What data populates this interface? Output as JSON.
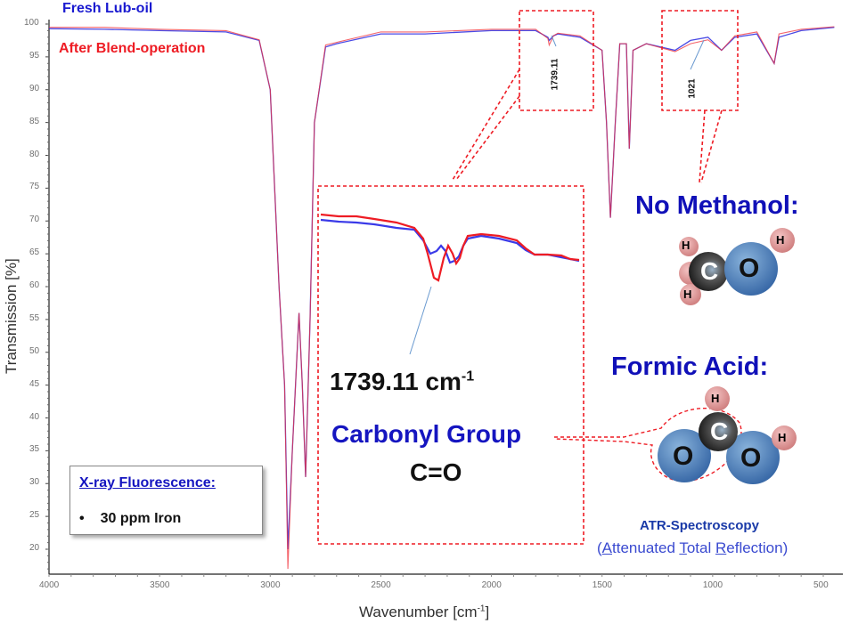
{
  "legend": {
    "series1": "Fresh Lub-oil",
    "series2": "After Blend-operation"
  },
  "axes": {
    "ylabel": "Transmission [%]",
    "xlabel_main": "Wavenumber [cm",
    "xlabel_sup": "-1",
    "xlabel_end": "]",
    "yticks": [
      "100",
      "95",
      "90",
      "85",
      "80",
      "75",
      "70",
      "65",
      "60",
      "55",
      "50",
      "45",
      "40",
      "35",
      "30",
      "25",
      "20"
    ],
    "xticks": [
      "4000",
      "3500",
      "3000",
      "2500",
      "2000",
      "1500",
      "1000",
      "500"
    ]
  },
  "annotations": {
    "peak1_label": "1739.11",
    "peak2_label": "1021",
    "inset_wavenumber": "1739.11 cm",
    "inset_wavenumber_sup": "-1",
    "inset_group": "Carbonyl Group",
    "inset_formula": "C=O",
    "methanol_title": "No Methanol:",
    "formic_title": "Formic Acid:",
    "atr_title": "ATR-Spectroscopy",
    "atr_sub_open": "(",
    "atr_sub_A": "A",
    "atr_sub_ttenuated": "ttenuated ",
    "atr_sub_T": "T",
    "atr_sub_otal": "otal ",
    "atr_sub_R": "R",
    "atr_sub_eflection": "eflection)"
  },
  "xrf_box": {
    "title": "X-ray Fluorescence:",
    "item": "30 ppm Iron"
  },
  "molecules": {
    "methanol": {
      "atoms": [
        "H",
        "H",
        "H",
        "C",
        "O",
        "H"
      ]
    },
    "formic_acid": {
      "atoms": [
        "H",
        "C",
        "O",
        "O",
        "H"
      ]
    }
  },
  "colors": {
    "fresh": "#2a2ae0",
    "after": "#f0303a",
    "annotation_box": "#ee1c24",
    "title_blue": "#1010b8"
  },
  "chart_data": {
    "type": "line",
    "title": "",
    "xlabel": "Wavenumber [cm-1]",
    "ylabel": "Transmission [%]",
    "xlim": [
      4000,
      450
    ],
    "ylim": [
      16,
      100
    ],
    "x_reversed": true,
    "grid": false,
    "legend_position": "top-left",
    "series": [
      {
        "name": "Fresh Lub-oil",
        "color": "#2a2ae0",
        "points": [
          [
            4000,
            99.3
          ],
          [
            3750,
            99.2
          ],
          [
            3500,
            99.0
          ],
          [
            3200,
            98.8
          ],
          [
            3050,
            97.5
          ],
          [
            3000,
            90
          ],
          [
            2960,
            60
          ],
          [
            2935,
            45
          ],
          [
            2920,
            20
          ],
          [
            2900,
            35
          ],
          [
            2870,
            56
          ],
          [
            2855,
            45
          ],
          [
            2840,
            31
          ],
          [
            2820,
            55
          ],
          [
            2800,
            85
          ],
          [
            2750,
            96.5
          ],
          [
            2700,
            97
          ],
          [
            2500,
            98.5
          ],
          [
            2300,
            98.5
          ],
          [
            2000,
            99
          ],
          [
            1800,
            99
          ],
          [
            1745,
            98
          ],
          [
            1739,
            97.5
          ],
          [
            1720,
            98.2
          ],
          [
            1700,
            98.5
          ],
          [
            1600,
            98
          ],
          [
            1500,
            96
          ],
          [
            1480,
            85
          ],
          [
            1462,
            70.5
          ],
          [
            1440,
            85
          ],
          [
            1420,
            97
          ],
          [
            1390,
            97
          ],
          [
            1377,
            81
          ],
          [
            1360,
            96
          ],
          [
            1300,
            97
          ],
          [
            1170,
            96
          ],
          [
            1100,
            97.5
          ],
          [
            1021,
            98
          ],
          [
            960,
            96
          ],
          [
            900,
            98
          ],
          [
            800,
            98.5
          ],
          [
            722,
            94
          ],
          [
            700,
            98
          ],
          [
            600,
            99
          ],
          [
            450,
            99.5
          ]
        ]
      },
      {
        "name": "After Blend-operation",
        "color": "#f0303a",
        "points": [
          [
            4000,
            99.5
          ],
          [
            3750,
            99.5
          ],
          [
            3500,
            99.2
          ],
          [
            3200,
            99.0
          ],
          [
            3050,
            97.6
          ],
          [
            3000,
            90
          ],
          [
            2960,
            60
          ],
          [
            2935,
            45
          ],
          [
            2920,
            17
          ],
          [
            2900,
            35
          ],
          [
            2870,
            56
          ],
          [
            2855,
            45
          ],
          [
            2840,
            31
          ],
          [
            2820,
            55
          ],
          [
            2800,
            85
          ],
          [
            2750,
            96.8
          ],
          [
            2700,
            97.2
          ],
          [
            2500,
            98.8
          ],
          [
            2300,
            98.8
          ],
          [
            2000,
            99.2
          ],
          [
            1800,
            99.2
          ],
          [
            1745,
            97.8
          ],
          [
            1739,
            96.8
          ],
          [
            1720,
            98.2
          ],
          [
            1700,
            98.6
          ],
          [
            1600,
            98.2
          ],
          [
            1500,
            96
          ],
          [
            1480,
            85
          ],
          [
            1462,
            70.5
          ],
          [
            1440,
            85
          ],
          [
            1420,
            97
          ],
          [
            1390,
            97
          ],
          [
            1377,
            81
          ],
          [
            1360,
            96
          ],
          [
            1300,
            97
          ],
          [
            1170,
            95.8
          ],
          [
            1100,
            97
          ],
          [
            1021,
            97.6
          ],
          [
            960,
            96
          ],
          [
            900,
            98.2
          ],
          [
            800,
            98.8
          ],
          [
            722,
            94
          ],
          [
            700,
            98.5
          ],
          [
            600,
            99.2
          ],
          [
            450,
            99.6
          ]
        ]
      }
    ],
    "annotations": [
      {
        "x": 1739.11,
        "label": "1739.11",
        "note": "Carbonyl Group C=O"
      },
      {
        "x": 1021,
        "label": "1021",
        "note": "No Methanol"
      }
    ]
  }
}
